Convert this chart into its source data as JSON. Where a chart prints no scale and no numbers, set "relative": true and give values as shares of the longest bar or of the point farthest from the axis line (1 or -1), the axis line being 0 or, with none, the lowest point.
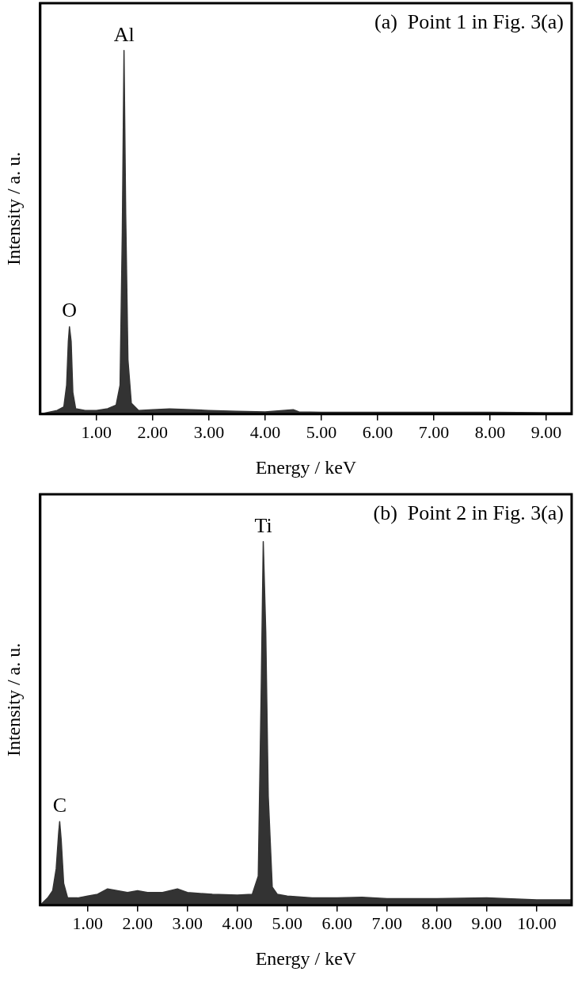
{
  "chart_data": [
    {
      "type": "area",
      "title": "(a)  Point 1 in Fig. 3(a)",
      "xlabel": "Energy / keV",
      "ylabel": "Intensity / a. u.",
      "relative": true,
      "tick_labels": "x",
      "legend": false,
      "xlim": [
        0,
        9.45
      ],
      "xticks": [
        {
          "value": 1,
          "label": "1.00"
        },
        {
          "value": 2,
          "label": "2.00"
        },
        {
          "value": 3,
          "label": "3.00"
        },
        {
          "value": 4,
          "label": "4.00"
        },
        {
          "value": 5,
          "label": "5.00"
        },
        {
          "value": 6,
          "label": "6.00"
        },
        {
          "value": 7,
          "label": "7.00"
        },
        {
          "value": 8,
          "label": "8.00"
        },
        {
          "value": 9,
          "label": "9.00"
        }
      ],
      "annotations": [
        {
          "text": "O",
          "x": 0.52,
          "y": 0.24
        },
        {
          "text": "Al",
          "x": 1.49,
          "y": 1
        }
      ],
      "series": [
        {
          "color": "#333333",
          "x": [
            0,
            0.15,
            0.3,
            0.42,
            0.47,
            0.5,
            0.52,
            0.55,
            0.58,
            0.63,
            0.8,
            1.0,
            1.2,
            1.35,
            1.42,
            1.46,
            1.49,
            1.52,
            1.56,
            1.62,
            1.75,
            2.0,
            2.3,
            2.7,
            3.0,
            3.5,
            4.0,
            4.5,
            4.6,
            5,
            6,
            7,
            8,
            9,
            9.45
          ],
          "values": [
            0,
            0.005,
            0.01,
            0.02,
            0.08,
            0.2,
            0.24,
            0.2,
            0.06,
            0.015,
            0.01,
            0.01,
            0.015,
            0.025,
            0.08,
            0.5,
            1,
            0.55,
            0.15,
            0.03,
            0.01,
            0.012,
            0.014,
            0.012,
            0.01,
            0.008,
            0.006,
            0.012,
            0.006,
            0.005,
            0.005,
            0.005,
            0.005,
            0.004,
            0.004
          ]
        }
      ]
    },
    {
      "type": "area",
      "title": "(b)  Point 2 in Fig. 3(a)",
      "xlabel": "Energy / keV",
      "ylabel": "Intensity / a. u.",
      "relative": true,
      "tick_labels": "x",
      "legend": false,
      "xlim": [
        0.05,
        10.7
      ],
      "xticks": [
        {
          "value": 1,
          "label": "1.00"
        },
        {
          "value": 2,
          "label": "2.00"
        },
        {
          "value": 3,
          "label": "3.00"
        },
        {
          "value": 4,
          "label": "4.00"
        },
        {
          "value": 5,
          "label": "5.00"
        },
        {
          "value": 6,
          "label": "6.00"
        },
        {
          "value": 7,
          "label": "7.00"
        },
        {
          "value": 8,
          "label": "8.00"
        },
        {
          "value": 9,
          "label": "9.00"
        },
        {
          "value": 10,
          "label": "10.00"
        }
      ],
      "annotations": [
        {
          "text": "C",
          "x": 0.44,
          "y": 0.23
        },
        {
          "text": "Ti",
          "x": 4.52,
          "y": 1
        }
      ],
      "series": [
        {
          "color": "#333333",
          "x": [
            0.05,
            0.2,
            0.3,
            0.37,
            0.42,
            0.44,
            0.47,
            0.52,
            0.6,
            0.8,
            1.0,
            1.2,
            1.4,
            1.6,
            1.8,
            2.0,
            2.2,
            2.5,
            2.8,
            3.0,
            3.5,
            4.0,
            4.3,
            4.42,
            4.48,
            4.52,
            4.57,
            4.62,
            4.7,
            4.8,
            5.0,
            5.5,
            6,
            6.5,
            7,
            8,
            9,
            10,
            10.7
          ],
          "values": [
            0,
            0.02,
            0.04,
            0.1,
            0.2,
            0.23,
            0.18,
            0.06,
            0.02,
            0.02,
            0.025,
            0.03,
            0.045,
            0.04,
            0.035,
            0.04,
            0.035,
            0.035,
            0.045,
            0.035,
            0.03,
            0.028,
            0.03,
            0.08,
            0.6,
            1,
            0.75,
            0.3,
            0.05,
            0.03,
            0.025,
            0.02,
            0.02,
            0.022,
            0.018,
            0.018,
            0.02,
            0.015,
            0.015
          ]
        }
      ]
    }
  ]
}
